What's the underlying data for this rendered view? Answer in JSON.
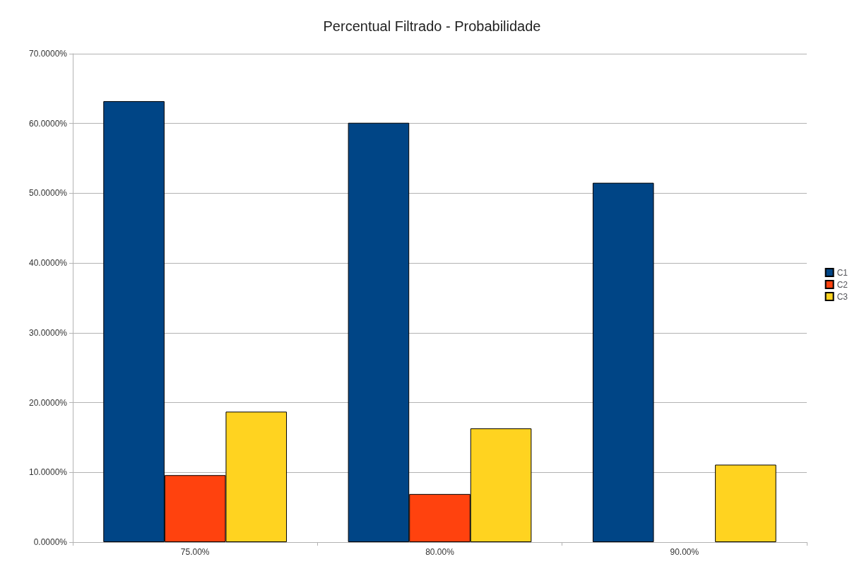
{
  "chart_data": {
    "type": "bar",
    "title": "Percentual Filtrado - Probabilidade",
    "categories": [
      "75.00%",
      "80.00%",
      "90.00%"
    ],
    "series": [
      {
        "name": "C1",
        "color": "#004586",
        "values": [
          63.2,
          60.1,
          51.5
        ]
      },
      {
        "name": "C2",
        "color": "#ff420e",
        "values": [
          9.6,
          6.9,
          null
        ]
      },
      {
        "name": "C3",
        "color": "#ffd320",
        "values": [
          18.7,
          16.3,
          11.1
        ]
      }
    ],
    "ylim": [
      0,
      70
    ],
    "yticks": [
      {
        "value": 0,
        "label": "0.0000%"
      },
      {
        "value": 10,
        "label": "10.0000%"
      },
      {
        "value": 20,
        "label": "20.0000%"
      },
      {
        "value": 30,
        "label": "30.0000%"
      },
      {
        "value": 40,
        "label": "40.0000%"
      },
      {
        "value": 50,
        "label": "50.0000%"
      },
      {
        "value": 60,
        "label": "60.0000%"
      },
      {
        "value": 70,
        "label": "70.0000%"
      }
    ],
    "grid": "y",
    "legend": "right"
  }
}
